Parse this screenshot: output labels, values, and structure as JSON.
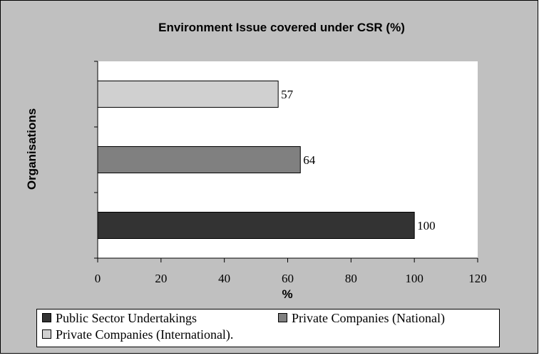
{
  "chart_data": {
    "type": "bar",
    "orientation": "horizontal",
    "title": "Environment Issue covered under CSR (%)",
    "xlabel": "%",
    "ylabel": "Organisations",
    "xlim": [
      0,
      120
    ],
    "xticks": [
      0,
      20,
      40,
      60,
      80,
      100,
      120
    ],
    "grid": false,
    "legend_position": "bottom",
    "series": [
      {
        "name": "Public Sector Undertakings",
        "value": 100,
        "color": "#333333"
      },
      {
        "name": "Private Companies (National)",
        "value": 64,
        "color": "#808080"
      },
      {
        "name": "Private Companies (International).",
        "value": 57,
        "color": "#d0d0d0"
      }
    ],
    "colors": {
      "chart_area": "#c0c0c0",
      "plot_area": "#ffffff",
      "bar_border": "#000000"
    }
  }
}
